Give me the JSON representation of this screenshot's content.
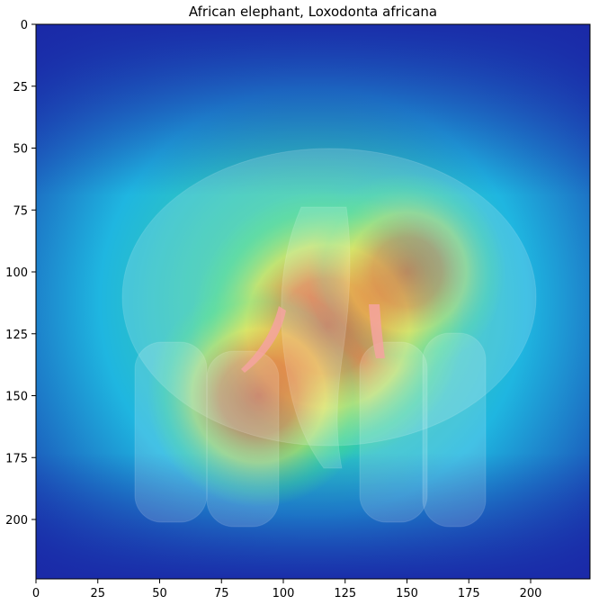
{
  "chart_data": {
    "type": "heatmap",
    "title": "African elephant, Loxodonta africana",
    "xlabel": "",
    "ylabel": "",
    "xlim": [
      0,
      224
    ],
    "ylim": [
      224,
      0
    ],
    "xticks": [
      0,
      25,
      50,
      75,
      100,
      125,
      150,
      175,
      200
    ],
    "yticks": [
      0,
      25,
      50,
      75,
      100,
      125,
      150,
      175,
      200
    ],
    "xtick_labels": [
      "0",
      "25",
      "50",
      "75",
      "100",
      "125",
      "150",
      "175",
      "200"
    ],
    "ytick_labels": [
      "0",
      "25",
      "50",
      "75",
      "100",
      "125",
      "150",
      "175",
      "200"
    ],
    "grid": false,
    "colormap": "jet",
    "overlay": "saliency heatmap over photo of an elephant",
    "hotspots": [
      {
        "name": "primary",
        "cx": 118,
        "cy": 122,
        "rx": 55,
        "ry": 55,
        "intensity": 1.0
      },
      {
        "name": "secondary",
        "cx": 90,
        "cy": 150,
        "rx": 45,
        "ry": 45,
        "intensity": 0.75
      },
      {
        "name": "tertiary",
        "cx": 150,
        "cy": 100,
        "rx": 40,
        "ry": 40,
        "intensity": 0.6
      }
    ],
    "colors": {
      "low": "#1a2aa8",
      "mid_low": "#1fb6e0",
      "mid": "#4fe07a",
      "mid_high": "#f2e33a",
      "high": "#d42a16"
    }
  }
}
